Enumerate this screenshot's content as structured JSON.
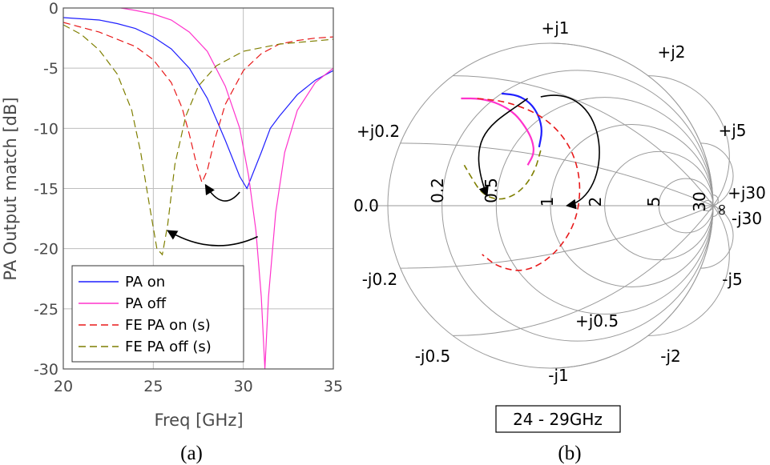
{
  "chart_data": [
    {
      "type": "line",
      "panel_caption": "(a)",
      "xlabel": "Freq [GHz]",
      "ylabel": "PA Output match [dB]",
      "xlim": [
        20,
        35
      ],
      "ylim": [
        -30,
        0
      ],
      "xticks": [
        20,
        25,
        30,
        35
      ],
      "yticks": [
        0,
        -5,
        -10,
        -15,
        -20,
        -25,
        -30
      ],
      "grid": true,
      "legend_placement": "bottom-left",
      "series": [
        {
          "name": "PA on",
          "color": "#1f1fff",
          "dash": "solid",
          "x": [
            20,
            22,
            23,
            24,
            25,
            26,
            27,
            28,
            29,
            29.8,
            30.2,
            30.6,
            31,
            31.5,
            32,
            33,
            34,
            35
          ],
          "y": [
            -0.8,
            -1.0,
            -1.3,
            -1.7,
            -2.4,
            -3.4,
            -5.0,
            -7.5,
            -11.0,
            -14.0,
            -15.0,
            -13.5,
            -12.0,
            -10.0,
            -9.0,
            -7.2,
            -6.0,
            -5.2
          ]
        },
        {
          "name": "PA off",
          "color": "#ff33cc",
          "dash": "solid",
          "x": [
            23.2,
            24,
            25,
            26,
            27,
            28,
            29,
            29.8,
            30.3,
            30.7,
            31,
            31.2,
            31.4,
            31.8,
            32.3,
            33,
            34,
            35
          ],
          "y": [
            0.0,
            -0.2,
            -0.5,
            -1.0,
            -2.0,
            -3.6,
            -6.5,
            -10.0,
            -14.0,
            -18.5,
            -24.0,
            -30.0,
            -24.0,
            -17.0,
            -12.0,
            -8.5,
            -6.2,
            -5.0
          ]
        },
        {
          "name": "FE PA on (s)",
          "color": "#e8191a",
          "dash": "dashed",
          "x": [
            20,
            22,
            24,
            25,
            26,
            26.6,
            27,
            27.4,
            27.7,
            28.0,
            28.4,
            29,
            30,
            31,
            32,
            33,
            34,
            35
          ],
          "y": [
            -1.2,
            -2.0,
            -3.2,
            -4.3,
            -6.2,
            -8.3,
            -10.5,
            -13.0,
            -14.5,
            -13.5,
            -11.0,
            -8.0,
            -5.2,
            -3.8,
            -3.0,
            -2.7,
            -2.5,
            -2.4
          ]
        },
        {
          "name": "FE PA off (s)",
          "color": "#7f7f00",
          "dash": "dashed",
          "x": [
            20,
            21,
            22,
            23,
            23.8,
            24.3,
            24.8,
            25.2,
            25.5,
            25.8,
            26.2,
            26.8,
            27.5,
            28.5,
            30,
            32,
            35
          ],
          "y": [
            -1.4,
            -2.2,
            -3.5,
            -5.5,
            -8.5,
            -12.0,
            -16.5,
            -20.0,
            -20.5,
            -18.0,
            -13.0,
            -9.0,
            -6.5,
            -4.8,
            -3.6,
            -3.0,
            -2.6
          ]
        }
      ],
      "annotations": [
        {
          "type": "arrow",
          "from": [
            29.8,
            -15.3
          ],
          "to": [
            27.9,
            -14.7
          ]
        },
        {
          "type": "arrow",
          "from": [
            30.8,
            -19.0
          ],
          "to": [
            25.8,
            -18.5
          ]
        }
      ]
    },
    {
      "type": "smith",
      "panel_caption": "(b)",
      "frequency_label": "24 - 29GHz",
      "resistance_labels": [
        "0.0",
        "0.2",
        "0.5",
        "1",
        "2",
        "5",
        "30"
      ],
      "reactance_labels_top": [
        "+j0.2",
        "+j0.5",
        "+j1",
        "+j2",
        "+j5",
        "+j30"
      ],
      "reactance_labels_bottom": [
        "-j0.2",
        "-j0.5",
        "-j1",
        "-j2",
        "-j5",
        "-j30"
      ],
      "label_infinity": "∞",
      "series": [
        {
          "name": "PA on",
          "color": "#1f1fff",
          "dash": "solid",
          "gamma": [
            [
              -0.3,
              0.69
            ],
            [
              -0.2,
              0.68
            ],
            [
              -0.12,
              0.63
            ],
            [
              -0.07,
              0.55
            ],
            [
              -0.05,
              0.46
            ],
            [
              -0.07,
              0.36
            ]
          ]
        },
        {
          "name": "PA off",
          "color": "#ff33cc",
          "dash": "solid",
          "gamma": [
            [
              -0.55,
              0.66
            ],
            [
              -0.43,
              0.66
            ],
            [
              -0.32,
              0.63
            ],
            [
              -0.22,
              0.57
            ],
            [
              -0.15,
              0.48
            ],
            [
              -0.11,
              0.4
            ],
            [
              -0.1,
              0.32
            ],
            [
              -0.14,
              0.25
            ]
          ]
        },
        {
          "name": "FE PA on (s)",
          "color": "#e8191a",
          "dash": "dashed",
          "gamma": [
            [
              -0.45,
              0.66
            ],
            [
              -0.26,
              0.64
            ],
            [
              -0.04,
              0.55
            ],
            [
              0.12,
              0.38
            ],
            [
              0.19,
              0.15
            ],
            [
              0.16,
              -0.1
            ],
            [
              0.03,
              -0.3
            ],
            [
              -0.15,
              -0.41
            ],
            [
              -0.32,
              -0.38
            ],
            [
              -0.42,
              -0.3
            ]
          ]
        },
        {
          "name": "FE PA off (s)",
          "color": "#7f7f00",
          "dash": "dashed",
          "gamma": [
            [
              -0.06,
              0.34
            ],
            [
              -0.1,
              0.2
            ],
            [
              -0.19,
              0.08
            ],
            [
              -0.31,
              0.03
            ],
            [
              -0.42,
              0.07
            ],
            [
              -0.49,
              0.18
            ],
            [
              -0.53,
              0.25
            ]
          ]
        }
      ],
      "annotations": [
        {
          "type": "arrow",
          "from": [
            -0.14,
            0.66
          ],
          "to": [
            -0.39,
            0.06
          ]
        },
        {
          "type": "arrow",
          "from": [
            -0.06,
            0.67
          ],
          "to": [
            0.1,
            0.0
          ]
        }
      ]
    }
  ]
}
